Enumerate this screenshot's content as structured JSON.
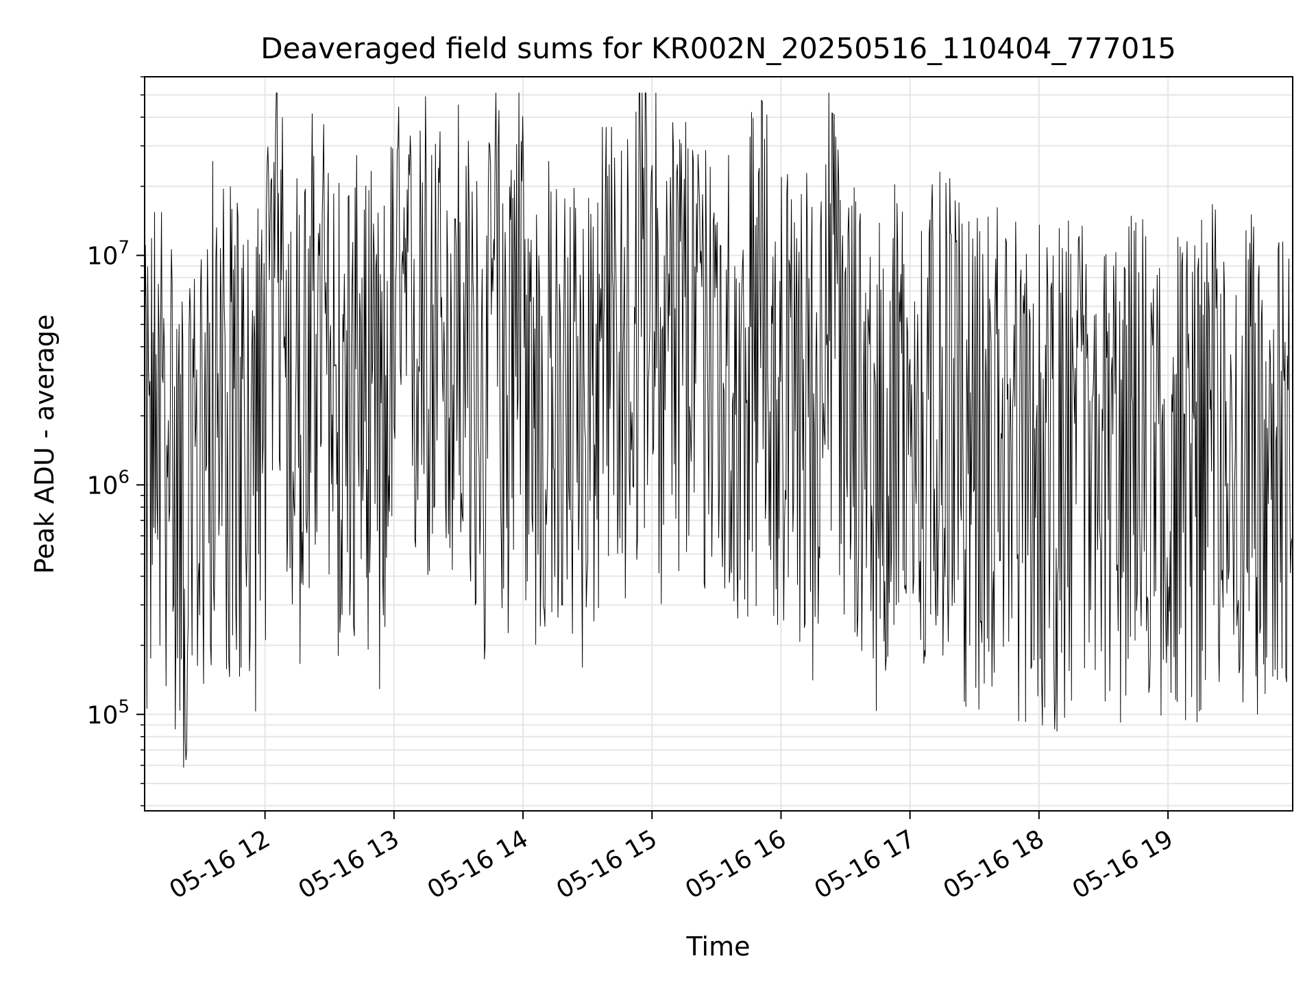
{
  "chart_data": {
    "type": "line",
    "title": "Deaveraged field sums for KR002N_20250516_110404_777015",
    "xlabel": "Time",
    "ylabel": "Peak ADU - average",
    "x_tick_labels": [
      "05-16 12",
      "05-16 13",
      "05-16 14",
      "05-16 15",
      "05-16 16",
      "05-16 17",
      "05-16 18",
      "05-16 19"
    ],
    "x_tick_times": [
      "2025-05-16T12:00",
      "2025-05-16T13:00",
      "2025-05-16T14:00",
      "2025-05-16T15:00",
      "2025-05-16T16:00",
      "2025-05-16T17:00",
      "2025-05-16T18:00",
      "2025-05-16T19:00"
    ],
    "xlim": [
      "2025-05-16T11:04",
      "2025-05-16T19:58"
    ],
    "y_scale": "log",
    "y_major_ticks": [
      100000,
      1000000,
      10000000
    ],
    "ylim": [
      38000,
      60000000
    ],
    "grid": true,
    "grid_color": "#e6e6e6",
    "line_color": "#000000",
    "series": [
      {
        "values": [
          [
            0,
            1500000
          ],
          [
            6,
            3500000
          ],
          [
            12,
            2200000
          ],
          [
            20,
            900000
          ],
          [
            32,
            4000000
          ],
          [
            38,
            3000000
          ],
          [
            44,
            2600000
          ],
          [
            50,
            1800000
          ],
          [
            56,
            4200000
          ],
          [
            62,
            22000000
          ],
          [
            65,
            12000000
          ],
          [
            68,
            3800000
          ],
          [
            74,
            3200000
          ],
          [
            80,
            9000000
          ],
          [
            86,
            4500000
          ],
          [
            92,
            3500000
          ],
          [
            104,
            4200000
          ],
          [
            110,
            2000000
          ],
          [
            116,
            8000000
          ],
          [
            122,
            5000000
          ],
          [
            128,
            10000000
          ],
          [
            134,
            6000000
          ],
          [
            140,
            6500000
          ],
          [
            146,
            8000000
          ],
          [
            152,
            4200000
          ],
          [
            158,
            2800000
          ],
          [
            164,
            12000000
          ],
          [
            168,
            3500000
          ],
          [
            174,
            18000000
          ],
          [
            180,
            2500000
          ],
          [
            186,
            4500000
          ],
          [
            192,
            3000000
          ],
          [
            198,
            3600000
          ],
          [
            204,
            3200000
          ],
          [
            210,
            5000000
          ],
          [
            216,
            6000000
          ],
          [
            222,
            6500000
          ],
          [
            228,
            5500000
          ],
          [
            234,
            20000000
          ],
          [
            240,
            5000000
          ],
          [
            246,
            7000000
          ],
          [
            252,
            8000000
          ],
          [
            258,
            4500000
          ],
          [
            264,
            9000000
          ],
          [
            270,
            5500000
          ],
          [
            276,
            4200000
          ],
          [
            282,
            6000000
          ],
          [
            288,
            7500000
          ],
          [
            294,
            5000000
          ],
          [
            300,
            3500000
          ],
          [
            306,
            4200000
          ],
          [
            312,
            2800000
          ],
          [
            318,
            18000000
          ],
          [
            324,
            3000000
          ],
          [
            330,
            3800000
          ],
          [
            336,
            2600000
          ],
          [
            342,
            2200000
          ],
          [
            348,
            3200000
          ],
          [
            354,
            2800000
          ],
          [
            360,
            2500000
          ],
          [
            366,
            2900000
          ],
          [
            372,
            3500000
          ],
          [
            378,
            2600000
          ],
          [
            384,
            2000000
          ],
          [
            390,
            2100000
          ],
          [
            396,
            3000000
          ],
          [
            402,
            2700000
          ],
          [
            408,
            1800000
          ],
          [
            414,
            2200000
          ],
          [
            420,
            1600000
          ],
          [
            426,
            1900000
          ],
          [
            432,
            2300000
          ],
          [
            438,
            2500000
          ],
          [
            444,
            1800000
          ],
          [
            450,
            1700000
          ],
          [
            456,
            2100000
          ],
          [
            462,
            2400000
          ],
          [
            468,
            1900000
          ],
          [
            474,
            2000000
          ],
          [
            480,
            2100000
          ],
          [
            486,
            1800000
          ],
          [
            492,
            2200000
          ],
          [
            498,
            2600000
          ],
          [
            504,
            1900000
          ],
          [
            510,
            1700000
          ],
          [
            516,
            2300000
          ],
          [
            522,
            2000000
          ],
          [
            528,
            1800000
          ],
          [
            534,
            1500000
          ],
          [
            540,
            1600000
          ],
          [
            546,
            1200000
          ],
          [
            552,
            1300000
          ],
          [
            558,
            1000000
          ],
          [
            564,
            900000
          ],
          [
            570,
            800000
          ],
          [
            576,
            700000
          ],
          [
            582,
            750000
          ],
          [
            588,
            650000
          ],
          [
            594,
            850000
          ],
          [
            600,
            900000
          ],
          [
            606,
            950000
          ],
          [
            612,
            1000000
          ],
          [
            618,
            1100000
          ],
          [
            624,
            1200000
          ],
          [
            630,
            1300000
          ],
          [
            636,
            1500000
          ],
          [
            642,
            1700000
          ],
          [
            648,
            1800000
          ],
          [
            654,
            1600000
          ],
          [
            660,
            1700000
          ],
          [
            666,
            1900000
          ],
          [
            672,
            2000000
          ],
          [
            678,
            2200000
          ],
          [
            684,
            2400000
          ],
          [
            690,
            2500000
          ],
          [
            696,
            2800000
          ],
          [
            702,
            3000000
          ],
          [
            708,
            3500000
          ],
          [
            714,
            4000000
          ],
          [
            720,
            3200000
          ],
          [
            726,
            2800000
          ],
          [
            732,
            2200000
          ],
          [
            738,
            1900000
          ],
          [
            744,
            1700000
          ],
          [
            750,
            1500000
          ],
          [
            756,
            1200000
          ],
          [
            762,
            900000
          ],
          [
            768,
            750000
          ],
          [
            774,
            700000
          ],
          [
            780,
            650000
          ],
          [
            786,
            700000
          ],
          [
            792,
            800000
          ],
          [
            798,
            750000
          ],
          [
            804,
            700000
          ],
          [
            810,
            780000
          ],
          [
            816,
            720000
          ],
          [
            822,
            800000
          ],
          [
            828,
            760000
          ],
          [
            834,
            820000
          ],
          [
            840,
            780000
          ],
          [
            846,
            850000
          ],
          [
            852,
            800000
          ],
          [
            858,
            780000
          ],
          [
            864,
            820000
          ],
          [
            870,
            850000
          ],
          [
            876,
            800000
          ],
          [
            882,
            900000
          ],
          [
            888,
            780000
          ],
          [
            894,
            850000
          ]
        ]
      }
    ]
  }
}
